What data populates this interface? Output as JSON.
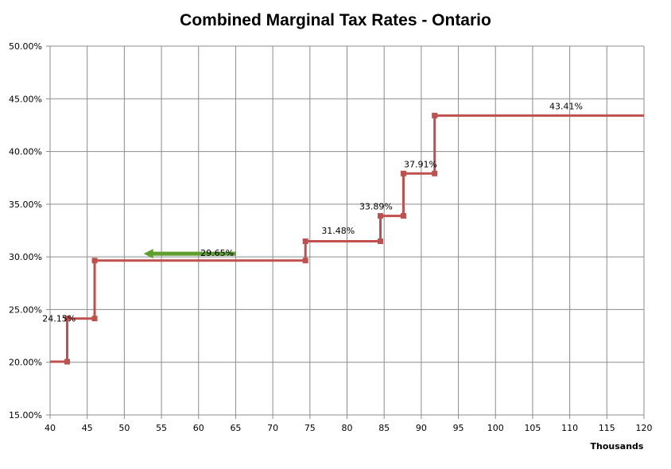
{
  "chart_data": {
    "type": "line",
    "title": "Combined Marginal Tax Rates - Ontario",
    "xlabel": "Thousands",
    "ylabel": "",
    "xlim": [
      40,
      120
    ],
    "ylim": [
      15,
      50
    ],
    "x_ticks": [
      "40",
      "45",
      "50",
      "55",
      "60",
      "65",
      "70",
      "75",
      "80",
      "85",
      "90",
      "95",
      "100",
      "105",
      "110",
      "115",
      "120"
    ],
    "y_ticks": [
      "15.00%",
      "20.00%",
      "25.00%",
      "30.00%",
      "35.00%",
      "40.00%",
      "45.00%",
      "50.00%"
    ],
    "grid": true,
    "legend": "none",
    "series": [
      {
        "color": "#C0504D",
        "step": true,
        "x": [
          40,
          42.3,
          42.3,
          46,
          46,
          74.4,
          74.4,
          84.5,
          84.5,
          87.6,
          87.6,
          91.8,
          91.8,
          120
        ],
        "y": [
          20.05,
          20.05,
          24.15,
          24.15,
          29.65,
          29.65,
          31.48,
          31.48,
          33.89,
          33.89,
          37.91,
          37.91,
          43.41,
          43.41
        ],
        "markers": [
          {
            "x": 42.3,
            "y": 20.05
          },
          {
            "x": 42.3,
            "y": 24.15
          },
          {
            "x": 46,
            "y": 24.15
          },
          {
            "x": 46,
            "y": 29.65
          },
          {
            "x": 74.4,
            "y": 29.65
          },
          {
            "x": 74.4,
            "y": 31.48
          },
          {
            "x": 84.5,
            "y": 31.48
          },
          {
            "x": 84.5,
            "y": 33.89
          },
          {
            "x": 87.6,
            "y": 33.89
          },
          {
            "x": 87.6,
            "y": 37.91
          },
          {
            "x": 91.8,
            "y": 37.91
          },
          {
            "x": 91.8,
            "y": 43.41
          }
        ]
      }
    ],
    "data_labels": [
      {
        "text": "24.15%",
        "x": 41.2,
        "y": 24.15
      },
      {
        "text": "29.65%",
        "x": 62.5,
        "y": 30.4
      },
      {
        "text": "31.48%",
        "x": 78.8,
        "y": 32.5
      },
      {
        "text": "33.89%",
        "x": 83.9,
        "y": 34.8
      },
      {
        "text": "37.91%",
        "x": 89.9,
        "y": 38.8
      },
      {
        "text": "43.41%",
        "x": 109.5,
        "y": 44.3
      }
    ],
    "annotations": [
      {
        "kind": "arrow",
        "color": "#5F9E2F",
        "from": {
          "x": 65,
          "y": 30.3
        },
        "to": {
          "x": 52.6,
          "y": 30.3
        }
      }
    ]
  }
}
